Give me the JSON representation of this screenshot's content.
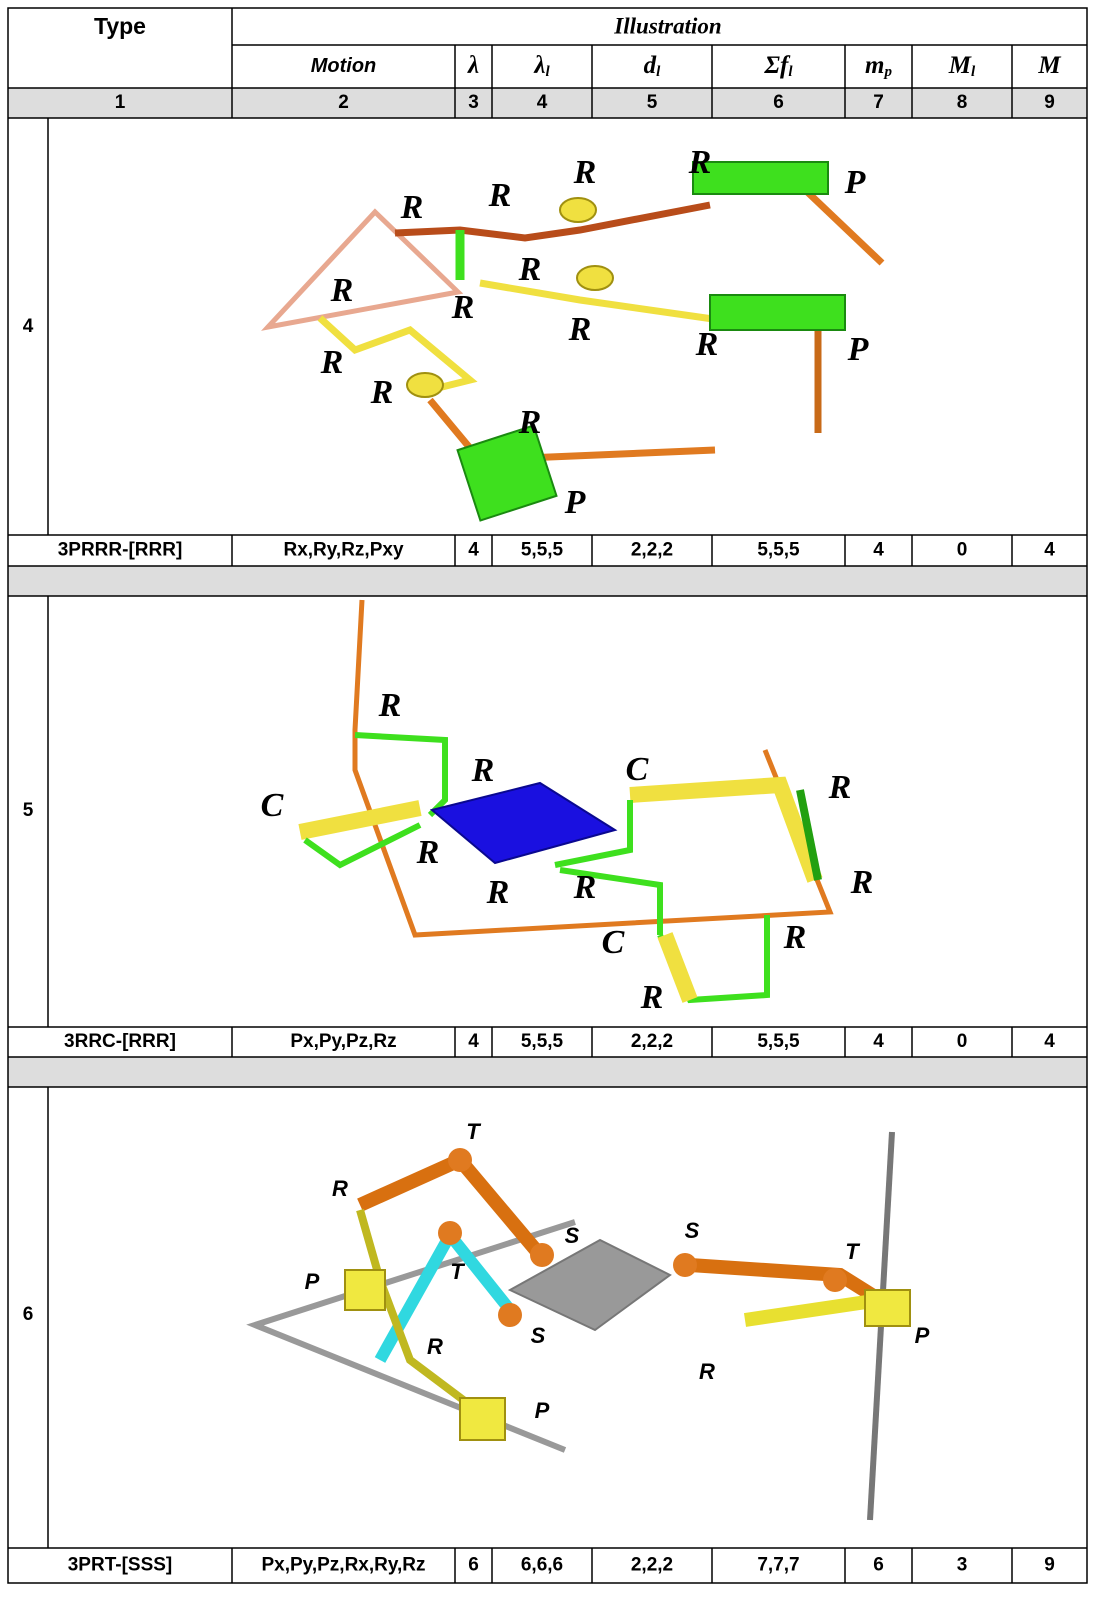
{
  "header": {
    "type": "Type",
    "illustration": "Illustration",
    "columns": [
      {
        "base": "Motion"
      },
      {
        "base": "λ"
      },
      {
        "base": "λ",
        "sub": "l"
      },
      {
        "base": "d",
        "sub": "l"
      },
      {
        "base": "Σf",
        "sub": "l"
      },
      {
        "base": "m",
        "sub": "p"
      },
      {
        "base": "M",
        "sub": "l"
      },
      {
        "base": "M"
      }
    ],
    "numbers": [
      "1",
      "2",
      "3",
      "4",
      "5",
      "6",
      "7",
      "8",
      "9"
    ]
  },
  "rows": [
    {
      "id": "4",
      "labels": [
        "R",
        "P",
        "R",
        "R",
        "R",
        "R",
        "R",
        "R",
        "R",
        "R",
        "P",
        "R",
        "R",
        "R",
        "P"
      ],
      "cells": [
        "3PRRR-[RRR]",
        "Rx,Ry,Rz,Pxy",
        "4",
        "5,5,5",
        "2,2,2",
        "5,5,5",
        "4",
        "0",
        "4"
      ]
    },
    {
      "id": "5",
      "labels": [
        "R",
        "R",
        "C",
        "R",
        "C",
        "R",
        "R",
        "R",
        "R",
        "R",
        "C",
        "R"
      ],
      "cells": [
        "3RRC-[RRR]",
        "Px,Py,Pz,Rz",
        "4",
        "5,5,5",
        "2,2,2",
        "5,5,5",
        "4",
        "0",
        "4"
      ]
    },
    {
      "id": "6",
      "labels": [
        "T",
        "R",
        "S",
        "S",
        "T",
        "T",
        "P",
        "S",
        "P",
        "R",
        "R",
        "P"
      ],
      "cells": [
        "3PRT-[SSS]",
        "Px,Py,Pz,Rx,Ry,Rz",
        "6",
        "6,6,6",
        "2,2,2",
        "7,7,7",
        "6",
        "3",
        "9"
      ]
    }
  ]
}
